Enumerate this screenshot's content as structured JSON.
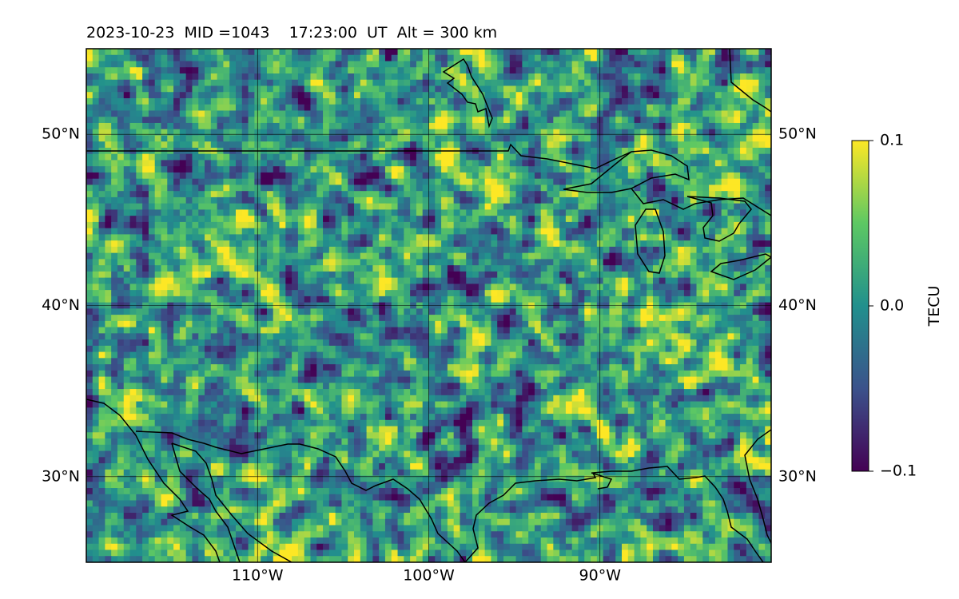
{
  "title": "2023-10-23  MID =1043    17:23:00  UT  Alt = 300 km",
  "map": {
    "lon_range": [
      -120,
      -80
    ],
    "lat_range": [
      25,
      55
    ],
    "lat_ticks": [
      {
        "value": 30,
        "label": "30°N"
      },
      {
        "value": 40,
        "label": "40°N"
      },
      {
        "value": 50,
        "label": "50°N"
      }
    ],
    "lon_ticks": [
      {
        "value": -110,
        "label": "110°W"
      },
      {
        "value": -100,
        "label": "100°W"
      },
      {
        "value": -90,
        "label": "90°W"
      }
    ],
    "gridlines": true,
    "data_field": "Total electron content perturbation (dTEC), gridded",
    "colormap": "viridis"
  },
  "colorbar": {
    "label": "TECU",
    "min": -0.1,
    "max": 0.1,
    "ticks": [
      {
        "value": 0.1,
        "label": "0.1"
      },
      {
        "value": 0.0,
        "label": "0.0"
      },
      {
        "value": -0.1,
        "label": "−0.1"
      }
    ]
  },
  "colors": {
    "viridis_stops": [
      "#440154",
      "#3b528b",
      "#21908d",
      "#5dc863",
      "#fde725"
    ],
    "coastline": "#000000",
    "grid": "#000000"
  }
}
